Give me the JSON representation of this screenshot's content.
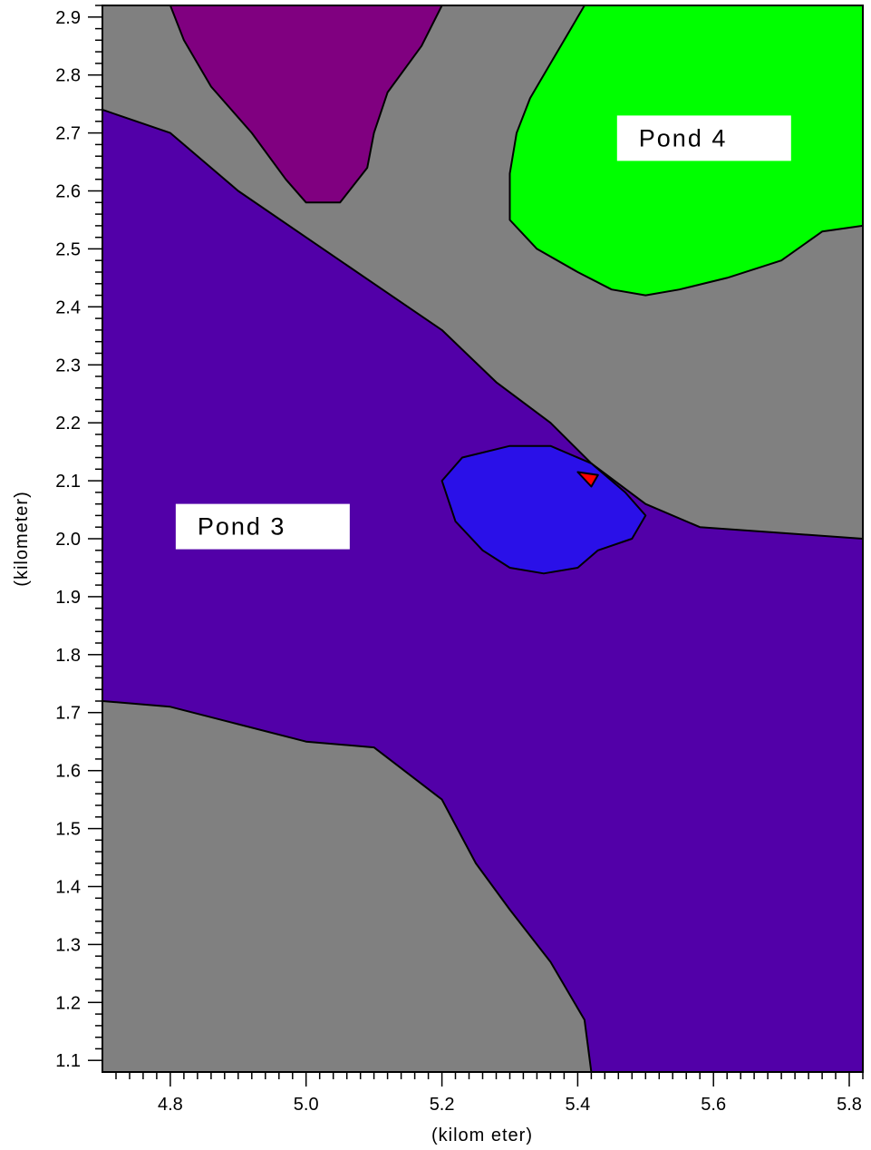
{
  "chart_data": {
    "type": "heatmap",
    "subtype": "filled-contour-map",
    "xlabel": "(kilom eter)",
    "ylabel": "(kilometer)",
    "xlim": [
      4.7,
      5.82
    ],
    "ylim": [
      1.08,
      2.92
    ],
    "x_ticks": [
      4.8,
      5.0,
      5.2,
      5.4,
      5.6,
      5.8
    ],
    "x_tick_labels": [
      "4.8",
      "5.0",
      "5.2",
      "5.4",
      "5.6",
      "5.8"
    ],
    "y_ticks": [
      1.1,
      1.2,
      1.3,
      1.4,
      1.5,
      1.6,
      1.7,
      1.8,
      1.9,
      2.0,
      2.1,
      2.2,
      2.3,
      2.4,
      2.5,
      2.6,
      2.7,
      2.8,
      2.9
    ],
    "y_tick_labels": [
      "1.1",
      "1.2",
      "1.3",
      "1.4",
      "1.5",
      "1.6",
      "1.7",
      "1.8",
      "1.9",
      "2.0",
      "2.1",
      "2.2",
      "2.3",
      "2.4",
      "2.5",
      "2.6",
      "2.7",
      "2.8",
      "2.9"
    ],
    "grid": false,
    "annotations": [
      {
        "text": "Pond 4",
        "x": 5.49,
        "y": 2.68
      },
      {
        "text": "Pond 3",
        "x": 4.84,
        "y": 2.01
      }
    ],
    "regions": [
      {
        "color": "#808080",
        "points": [
          [
            4.7,
            2.92
          ],
          [
            5.82,
            2.92
          ],
          [
            5.82,
            1.08
          ],
          [
            4.7,
            1.08
          ]
        ]
      },
      {
        "color": "#5200a8",
        "points": [
          [
            4.7,
            2.74
          ],
          [
            4.8,
            2.7
          ],
          [
            4.9,
            2.6
          ],
          [
            5.0,
            2.52
          ],
          [
            5.1,
            2.44
          ],
          [
            5.2,
            2.36
          ],
          [
            5.28,
            2.27
          ],
          [
            5.36,
            2.2
          ],
          [
            5.42,
            2.13
          ],
          [
            5.5,
            2.06
          ],
          [
            5.58,
            2.02
          ],
          [
            5.7,
            2.01
          ],
          [
            5.82,
            2.0
          ],
          [
            5.82,
            1.08
          ],
          [
            5.42,
            1.08
          ],
          [
            5.41,
            1.17
          ],
          [
            5.36,
            1.27
          ],
          [
            5.3,
            1.36
          ],
          [
            5.25,
            1.44
          ],
          [
            5.2,
            1.55
          ],
          [
            5.1,
            1.64
          ],
          [
            5.0,
            1.65
          ],
          [
            4.9,
            1.68
          ],
          [
            4.8,
            1.71
          ],
          [
            4.7,
            1.72
          ]
        ]
      },
      {
        "color": "#800080",
        "points": [
          [
            4.8,
            2.92
          ],
          [
            5.2,
            2.92
          ],
          [
            5.17,
            2.85
          ],
          [
            5.12,
            2.77
          ],
          [
            5.1,
            2.7
          ],
          [
            5.09,
            2.64
          ],
          [
            5.05,
            2.58
          ],
          [
            5.0,
            2.58
          ],
          [
            4.97,
            2.62
          ],
          [
            4.92,
            2.7
          ],
          [
            4.86,
            2.78
          ],
          [
            4.82,
            2.86
          ]
        ]
      },
      {
        "color": "#00ff00",
        "points": [
          [
            5.41,
            2.92
          ],
          [
            5.82,
            2.92
          ],
          [
            5.82,
            2.54
          ],
          [
            5.76,
            2.53
          ],
          [
            5.7,
            2.48
          ],
          [
            5.62,
            2.45
          ],
          [
            5.55,
            2.43
          ],
          [
            5.5,
            2.42
          ],
          [
            5.45,
            2.43
          ],
          [
            5.4,
            2.46
          ],
          [
            5.34,
            2.5
          ],
          [
            5.3,
            2.55
          ],
          [
            5.3,
            2.63
          ],
          [
            5.31,
            2.7
          ],
          [
            5.33,
            2.76
          ],
          [
            5.36,
            2.82
          ],
          [
            5.39,
            2.88
          ]
        ]
      },
      {
        "color": "#2a10e8",
        "points": [
          [
            5.2,
            2.1
          ],
          [
            5.23,
            2.14
          ],
          [
            5.3,
            2.16
          ],
          [
            5.36,
            2.16
          ],
          [
            5.42,
            2.13
          ],
          [
            5.47,
            2.08
          ],
          [
            5.5,
            2.04
          ],
          [
            5.48,
            2.0
          ],
          [
            5.43,
            1.98
          ],
          [
            5.4,
            1.95
          ],
          [
            5.35,
            1.94
          ],
          [
            5.3,
            1.95
          ],
          [
            5.26,
            1.98
          ],
          [
            5.22,
            2.03
          ]
        ]
      },
      {
        "color": "#ff0000",
        "points": [
          [
            5.4,
            2.115
          ],
          [
            5.43,
            2.11
          ],
          [
            5.42,
            2.09
          ]
        ]
      }
    ]
  }
}
